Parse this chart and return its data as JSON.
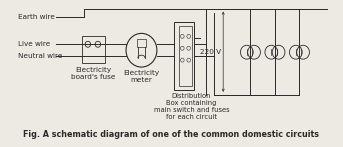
{
  "fig_width": 3.43,
  "fig_height": 1.47,
  "dpi": 100,
  "bg_color": "#ede9e3",
  "line_color": "#2a2a2a",
  "caption": "Fig. A schematic diagram of one of the common domestic circuits",
  "labels": {
    "earth_wire": "Earth wire",
    "live_wire": "Live wire",
    "neutral_wire": "Neutral wire",
    "elec_board_fuse": "Electricity\nboard's fuse",
    "elec_meter": "Electricity\nmeter",
    "dist_box": "Distribution\nBox containing\nmain switch and fuses\nfor each circuit",
    "voltage": "220 V"
  },
  "font_size_label": 5.2,
  "font_size_caption": 5.8
}
